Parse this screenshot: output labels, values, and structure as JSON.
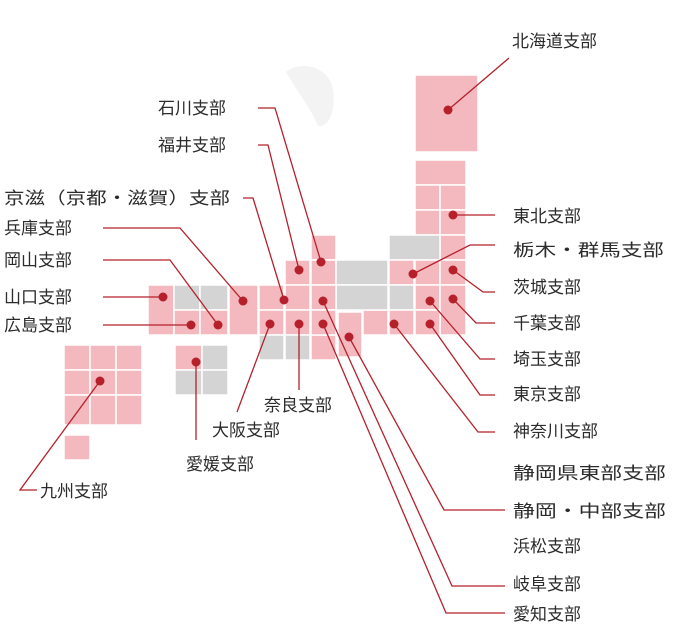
{
  "colors": {
    "branch_tile": "#f4b9be",
    "other_tile": "#d4d4d4",
    "leader_line": "#b5202a",
    "label_text": "#2b2b2b"
  },
  "branches": {
    "hokkaido": "北海道支部",
    "ishikawa": "石川支部",
    "fukui": "福井支部",
    "kyoto_shiga": "京滋（京都・滋賀）支部",
    "hyogo": "兵庫支部",
    "okayama": "岡山支部",
    "yamaguchi": "山口支部",
    "hiroshima": "広島支部",
    "kyushu": "九州支部",
    "ehime": "愛媛支部",
    "osaka": "大阪支部",
    "nara": "奈良支部",
    "tohoku": "東北支部",
    "tochigi_gunma": "栃木・群馬支部",
    "ibaraki": "茨城支部",
    "chiba": "千葉支部",
    "saitama": "埼玉支部",
    "tokyo": "東京支部",
    "kanagawa": "神奈川支部",
    "shizuoka_east": "静岡県東部支部",
    "shizuoka_central": "静岡・中部支部",
    "hamamatsu": "浜松支部",
    "gifu": "岐阜支部",
    "aichi": "愛知支部"
  }
}
